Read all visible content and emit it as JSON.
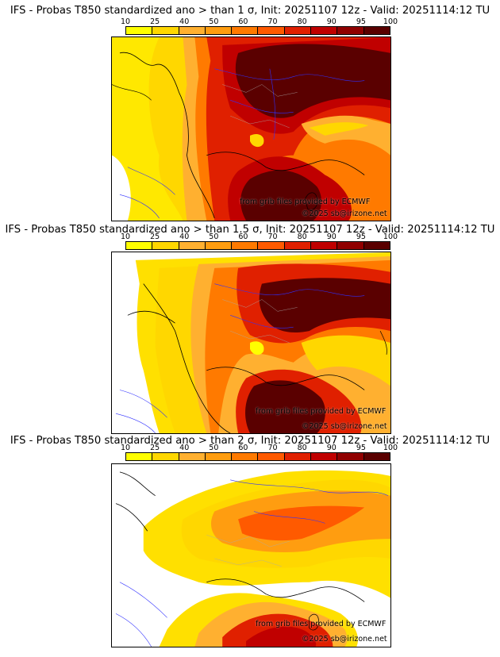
{
  "colorscale": {
    "ticks": [
      "10",
      "25",
      "40",
      "50",
      "60",
      "70",
      "80",
      "90",
      "95",
      "100"
    ],
    "colors": [
      "#ffff00",
      "#ffd700",
      "#ffb030",
      "#ff9d10",
      "#ff7a00",
      "#ff5a00",
      "#e02000",
      "#c00000",
      "#900000",
      "#5a0000"
    ]
  },
  "panels": [
    {
      "title": "IFS - Probas T850  standardized ano > than 1 σ, Init: 20251107 12z - Valid: 20251114:12 TU",
      "credit1": "from grib files provided by ECMWF",
      "credit2": "©2025 sb@irizone.net"
    },
    {
      "title": "IFS - Probas T850  standardized ano > than 1.5 σ, Init: 20251107 12z - Valid: 20251114:12 TU",
      "credit1": "from grib files provided by ECMWF",
      "credit2": "©2025 sb@irizone.net"
    },
    {
      "title": "IFS - Probas T850  standardized ano > than 2 σ, Init: 20251107 12z - Valid: 20251114:12 TU",
      "credit1": "from grib files provided by ECMWF",
      "credit2": "©2025 sb@irizone.net"
    }
  ]
}
